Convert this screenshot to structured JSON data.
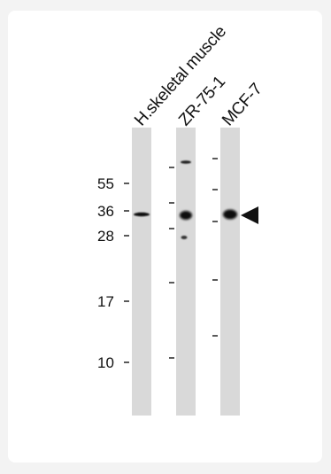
{
  "lanes": [
    {
      "label": "H.skeletal muscle"
    },
    {
      "label": "ZR-75-1"
    },
    {
      "label": "MCF-7"
    }
  ],
  "mw_markers": [
    "55",
    "36",
    "28",
    "17",
    "10"
  ],
  "colors": {
    "background": "#f3f3f3",
    "panel": "#ffffff",
    "lane": "#d9d9d9",
    "band": "#111111"
  },
  "icons": {
    "arrow": "band-pointer-triangle-icon"
  }
}
